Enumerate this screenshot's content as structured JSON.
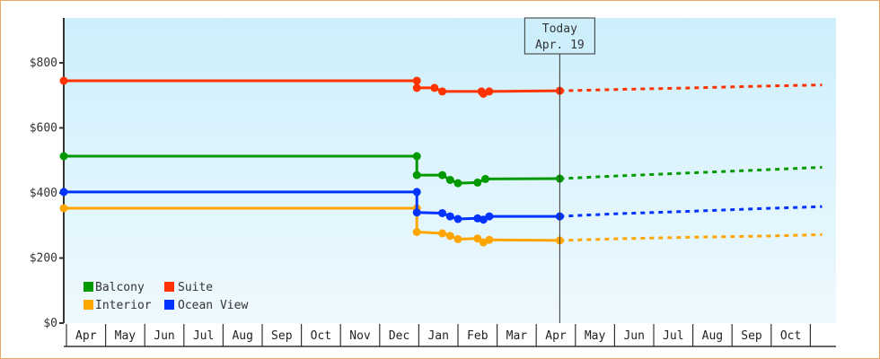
{
  "chart_data": {
    "type": "line",
    "title": "",
    "xlabel": "",
    "ylabel": "",
    "ylim": [
      0,
      940
    ],
    "y_ticks": [
      {
        "value": 0,
        "label": "$0"
      },
      {
        "value": 200,
        "label": "$200"
      },
      {
        "value": 400,
        "label": "$400"
      },
      {
        "value": 600,
        "label": "$600"
      },
      {
        "value": 800,
        "label": "$800"
      }
    ],
    "x_months": [
      "Apr",
      "May",
      "Jun",
      "Jul",
      "Aug",
      "Sep",
      "Oct",
      "Nov",
      "Dec",
      "Jan",
      "Feb",
      "Mar",
      "Apr",
      "May",
      "Jun",
      "Jul",
      "Aug",
      "Sep",
      "Oct"
    ],
    "today_marker": {
      "line1": "Today",
      "line2": "Apr. 19",
      "month_pos": 12.6
    },
    "grid": false,
    "legend_position": "bottom-left inside plot",
    "series": [
      {
        "name": "Balcony",
        "color": "#009900",
        "points": [
          [
            0,
            513
          ],
          [
            8.95,
            513
          ],
          [
            8.95,
            455
          ],
          [
            9.6,
            455
          ],
          [
            9.8,
            440
          ],
          [
            10.0,
            430
          ],
          [
            10.5,
            432
          ],
          [
            10.7,
            443
          ],
          [
            12.6,
            444
          ]
        ],
        "forecast": [
          [
            12.6,
            444
          ],
          [
            14,
            452
          ],
          [
            16,
            462
          ],
          [
            18,
            472
          ],
          [
            19.3,
            479
          ]
        ]
      },
      {
        "name": "Suite",
        "color": "#ff3300",
        "points": [
          [
            0,
            745
          ],
          [
            8.95,
            745
          ],
          [
            8.95,
            723
          ],
          [
            9.4,
            723
          ],
          [
            9.6,
            712
          ],
          [
            10.6,
            712
          ],
          [
            10.65,
            705
          ],
          [
            10.8,
            712
          ],
          [
            12.6,
            714
          ]
        ],
        "forecast": [
          [
            12.6,
            714
          ],
          [
            14,
            718
          ],
          [
            16,
            723
          ],
          [
            18,
            729
          ],
          [
            19.3,
            732
          ]
        ]
      },
      {
        "name": "Interior",
        "color": "#ffa500",
        "points": [
          [
            0,
            353
          ],
          [
            8.95,
            353
          ],
          [
            8.95,
            280
          ],
          [
            9.6,
            276
          ],
          [
            9.8,
            268
          ],
          [
            10.0,
            258
          ],
          [
            10.5,
            260
          ],
          [
            10.65,
            248
          ],
          [
            10.8,
            256
          ],
          [
            12.6,
            254
          ]
        ],
        "forecast": [
          [
            12.6,
            254
          ],
          [
            14,
            259
          ],
          [
            16,
            264
          ],
          [
            18,
            268
          ],
          [
            19.3,
            272
          ]
        ]
      },
      {
        "name": "Ocean View",
        "color": "#0033ff",
        "points": [
          [
            0,
            403
          ],
          [
            8.95,
            403
          ],
          [
            8.95,
            340
          ],
          [
            9.6,
            338
          ],
          [
            9.8,
            328
          ],
          [
            10.0,
            320
          ],
          [
            10.5,
            322
          ],
          [
            10.65,
            318
          ],
          [
            10.8,
            328
          ],
          [
            12.6,
            328
          ]
        ],
        "forecast": [
          [
            12.6,
            328
          ],
          [
            14,
            336
          ],
          [
            16,
            344
          ],
          [
            18,
            353
          ],
          [
            19.3,
            358
          ]
        ]
      }
    ]
  },
  "legend": {
    "items": [
      {
        "label": "Balcony",
        "color": "#009900"
      },
      {
        "label": "Suite",
        "color": "#ff3300"
      },
      {
        "label": "Interior",
        "color": "#ffa500"
      },
      {
        "label": "Ocean View",
        "color": "#0033ff"
      }
    ]
  },
  "colors": {
    "frame_border": "#e8a866",
    "plot_bg_top": "#cdeffc",
    "plot_bg_bottom": "#eef9fe",
    "axis": "#333333"
  }
}
